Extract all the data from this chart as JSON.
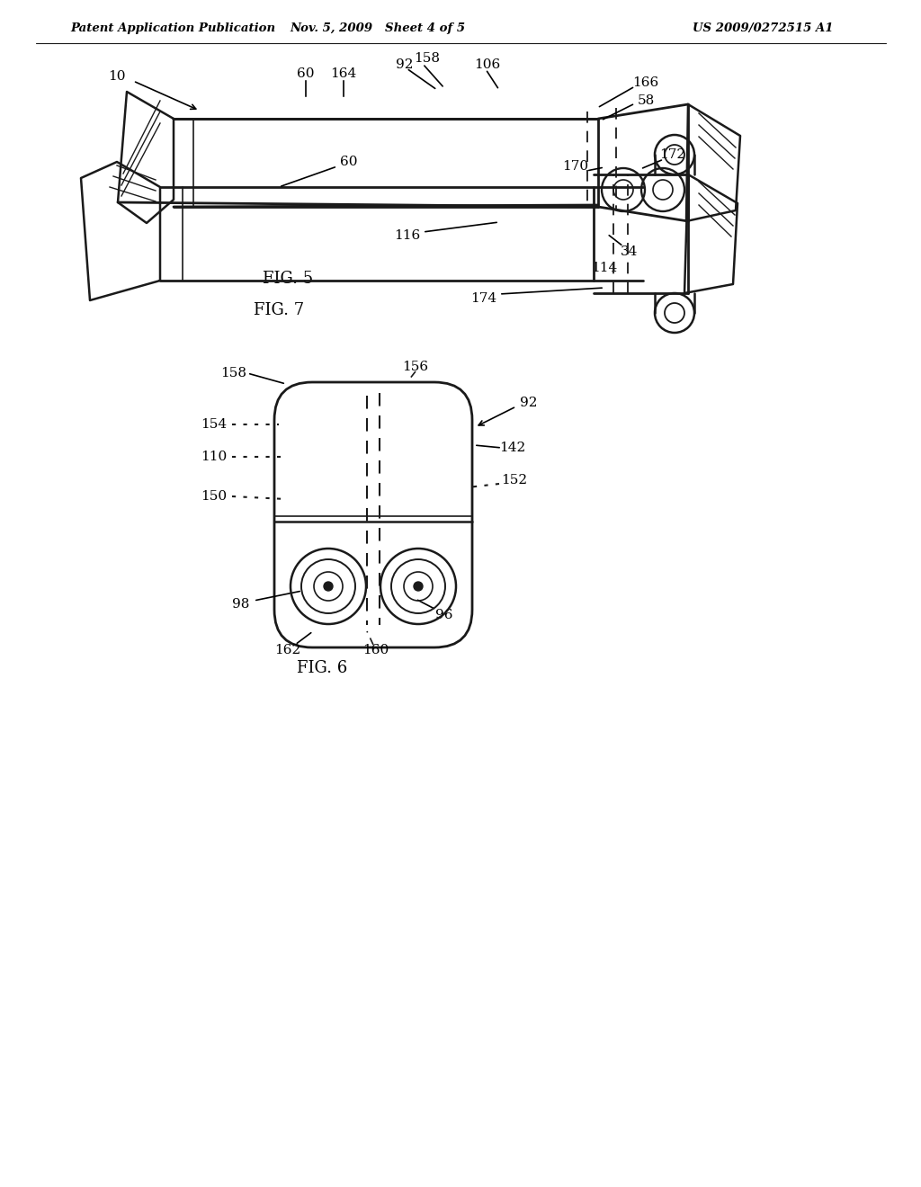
{
  "bg_color": "#ffffff",
  "lc": "#1a1a1a",
  "header_left": "Patent Application Publication",
  "header_mid": "Nov. 5, 2009   Sheet 4 of 5",
  "header_right": "US 2009/0272515 A1",
  "fig5_label": "FIG. 5",
  "fig6_label": "FIG. 6",
  "fig7_label": "FIG. 7"
}
